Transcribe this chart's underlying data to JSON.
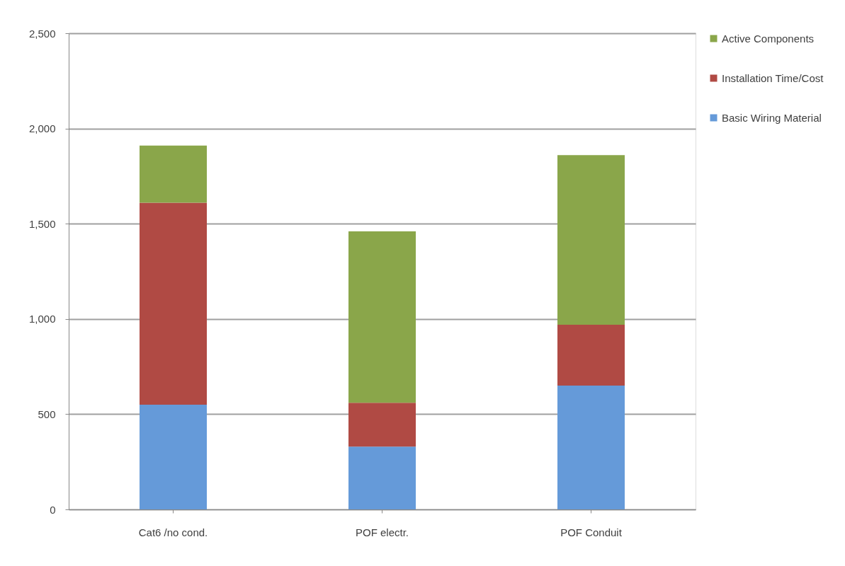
{
  "chart_data": {
    "type": "bar",
    "stacked": true,
    "categories": [
      "Cat6 /no cond.",
      "POF electr.",
      "POF Conduit"
    ],
    "series": [
      {
        "name": "Basic Wiring Material",
        "color": "#659ad9",
        "values": [
          550,
          330,
          650
        ]
      },
      {
        "name": "Installation Time/Cost",
        "color": "#b04a44",
        "values": [
          1060,
          230,
          320
        ]
      },
      {
        "name": "Active Components",
        "color": "#8aa64a",
        "values": [
          300,
          900,
          890
        ]
      }
    ],
    "ylim": [
      0,
      2500
    ],
    "yticks": [
      {
        "value": 0,
        "label": "0"
      },
      {
        "value": 500,
        "label": "500"
      },
      {
        "value": 1000,
        "label": "1,000"
      },
      {
        "value": 1500,
        "label": "1,500"
      },
      {
        "value": 2000,
        "label": "2,000"
      },
      {
        "value": 2500,
        "label": "2,500"
      }
    ],
    "grid": "y",
    "legend": "right"
  }
}
